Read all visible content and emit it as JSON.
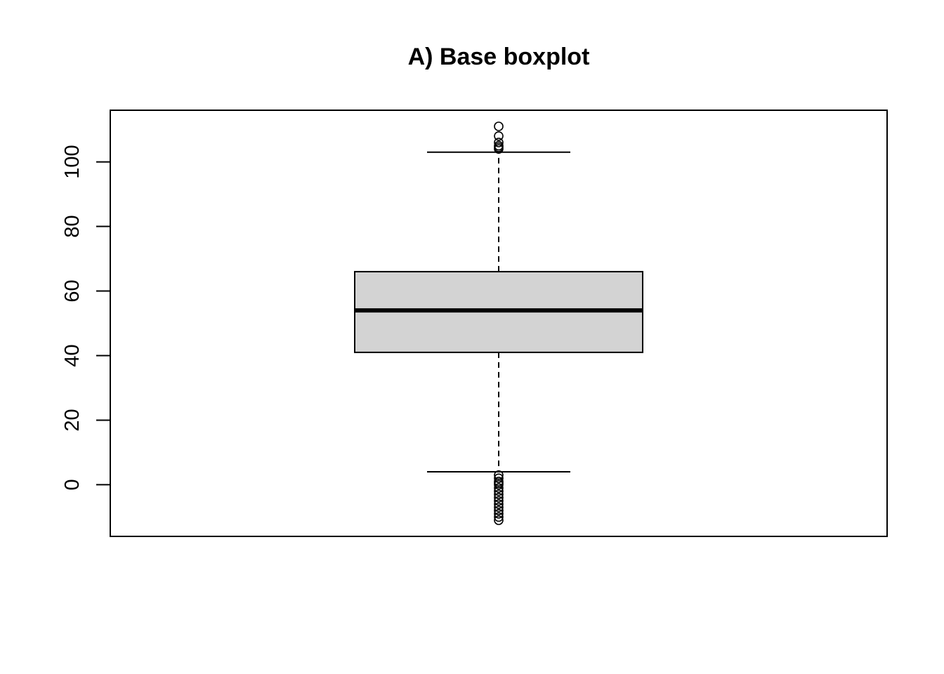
{
  "chart_data": {
    "type": "boxplot",
    "title": "A) Base boxplot",
    "xlabel": "",
    "ylabel": "",
    "ylim": [
      -16,
      116
    ],
    "yticks": [
      0,
      20,
      40,
      60,
      80,
      100
    ],
    "grid": false,
    "legend": "none",
    "colors": {
      "box_fill": "#d3d3d3",
      "stroke": "#000000",
      "background": "#ffffff"
    },
    "box": {
      "lower_whisker": 4,
      "q1": 41,
      "median": 54,
      "q3": 66,
      "upper_whisker": 103
    },
    "outliers": [
      111,
      108,
      106,
      105,
      104.5,
      104,
      3,
      2,
      1,
      0.5,
      0,
      -1,
      -2,
      -3,
      -4,
      -5,
      -6,
      -7,
      -8,
      -9,
      -10,
      -11
    ]
  }
}
